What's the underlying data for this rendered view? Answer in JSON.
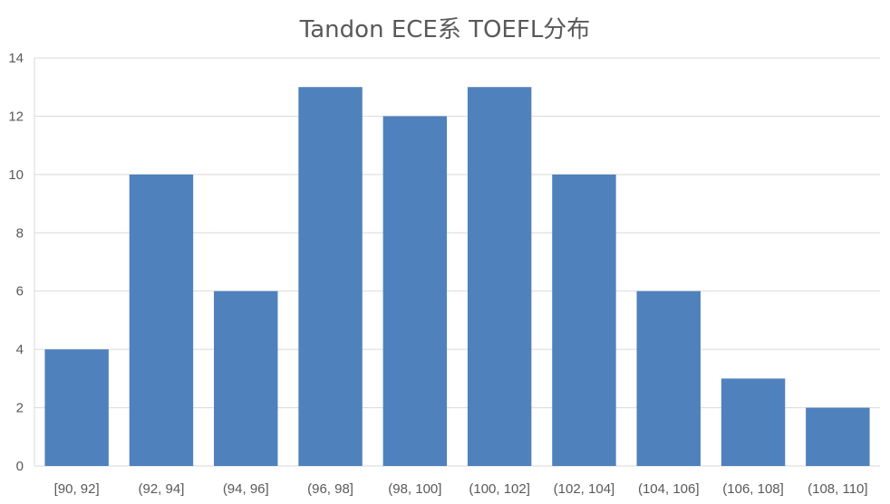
{
  "chart_data": {
    "type": "bar",
    "title": "Tandon ECE系 TOEFL分布",
    "xlabel": "",
    "ylabel": "",
    "categories": [
      "[90, 92]",
      "(92, 94]",
      "(94, 96]",
      "(96, 98]",
      "(98, 100]",
      "(100, 102]",
      "(102, 104]",
      "(104, 106]",
      "(106, 108]",
      "(108, 110]"
    ],
    "values": [
      4,
      10,
      6,
      13,
      12,
      13,
      10,
      6,
      3,
      2
    ],
    "ylim": [
      0,
      14
    ],
    "yticks": [
      0,
      2,
      4,
      6,
      8,
      10,
      12,
      14
    ],
    "grid": true,
    "legend": "none",
    "bar_color": "#4F81BD",
    "grid_color": "#D9D9D9"
  }
}
